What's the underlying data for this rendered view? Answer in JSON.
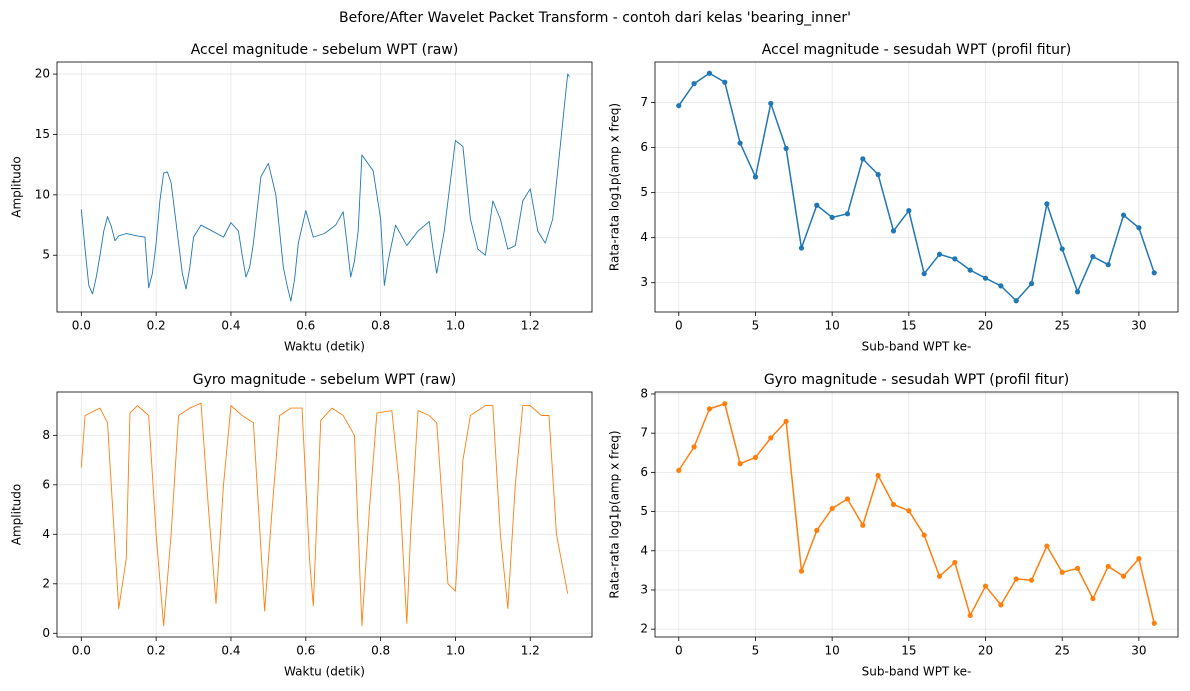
{
  "title": "Before/After Wavelet Packet Transform - contoh dari kelas 'bearing_inner'",
  "chart_data": [
    {
      "type": "line",
      "title": "Accel magnitude - sebelum WPT (raw)",
      "x_label": "Waktu (detik)",
      "y_label": "Amplitudo",
      "grid": true,
      "marker": false,
      "x": [
        0.0,
        0.01,
        0.02,
        0.03,
        0.04,
        0.05,
        0.06,
        0.07,
        0.08,
        0.09,
        0.1,
        0.12,
        0.15,
        0.17,
        0.18,
        0.19,
        0.2,
        0.21,
        0.22,
        0.23,
        0.24,
        0.25,
        0.26,
        0.27,
        0.28,
        0.29,
        0.3,
        0.32,
        0.35,
        0.38,
        0.4,
        0.42,
        0.43,
        0.44,
        0.45,
        0.46,
        0.48,
        0.5,
        0.52,
        0.53,
        0.54,
        0.55,
        0.56,
        0.57,
        0.58,
        0.6,
        0.62,
        0.65,
        0.68,
        0.7,
        0.71,
        0.72,
        0.73,
        0.74,
        0.75,
        0.78,
        0.79,
        0.8,
        0.81,
        0.82,
        0.84,
        0.87,
        0.9,
        0.93,
        0.94,
        0.95,
        0.97,
        1.0,
        1.02,
        1.04,
        1.06,
        1.08,
        1.1,
        1.12,
        1.14,
        1.16,
        1.18,
        1.2,
        1.22,
        1.24,
        1.26,
        1.28,
        1.3,
        1.305
      ],
      "xlim": [
        -0.065,
        1.365
      ],
      "xticks": [
        {
          "value": 0,
          "label": "0.0"
        },
        0.2,
        0.4,
        0.6,
        0.8,
        {
          "value": 1,
          "label": "1.0"
        },
        1.2
      ],
      "ylim": [
        0.3,
        21
      ],
      "yticks": [
        5,
        10,
        15,
        20
      ],
      "series": [
        {
          "color": "#1f77b4",
          "values": [
            8.8,
            5.5,
            2.5,
            1.8,
            3.2,
            5.0,
            7.0,
            8.2,
            7.4,
            6.2,
            6.6,
            6.8,
            6.6,
            6.5,
            2.3,
            3.5,
            6.0,
            9.5,
            11.8,
            11.9,
            11.0,
            8.5,
            6.0,
            3.5,
            2.2,
            4.0,
            6.5,
            7.5,
            7.0,
            6.5,
            7.7,
            7.0,
            5.0,
            3.2,
            4.0,
            6.0,
            11.5,
            12.6,
            10.0,
            7.0,
            4.0,
            2.5,
            1.2,
            3.0,
            6.0,
            8.7,
            6.5,
            6.8,
            7.5,
            8.6,
            6.0,
            3.2,
            4.5,
            7.0,
            13.3,
            12.0,
            10.0,
            8.0,
            2.5,
            4.5,
            7.5,
            5.8,
            7.0,
            7.8,
            5.5,
            3.5,
            7.0,
            14.5,
            14.0,
            8.0,
            5.5,
            5.0,
            9.5,
            8.0,
            5.5,
            5.8,
            9.5,
            10.5,
            7.0,
            6.0,
            8.0,
            14.0,
            20.0,
            19.8
          ]
        }
      ]
    },
    {
      "type": "line",
      "title": "Accel magnitude - sesudah WPT (profil fitur)",
      "x_label": "Sub-band WPT ke-",
      "y_label": "Rata-rata log1p(amp x freq)",
      "grid": true,
      "marker": true,
      "x": [
        0,
        1,
        2,
        3,
        4,
        5,
        6,
        7,
        8,
        9,
        10,
        11,
        12,
        13,
        14,
        15,
        16,
        17,
        18,
        19,
        20,
        21,
        22,
        23,
        24,
        25,
        26,
        27,
        28,
        29,
        30,
        31
      ],
      "xlim": [
        -1.55,
        32.55
      ],
      "xticks": [
        0,
        5,
        10,
        15,
        20,
        25,
        30
      ],
      "ylim": [
        2.35,
        7.9
      ],
      "yticks": [
        3,
        4,
        5,
        6,
        7
      ],
      "series": [
        {
          "color": "#1f77b4",
          "values": [
            6.93,
            7.42,
            7.65,
            7.45,
            6.1,
            5.35,
            6.98,
            5.98,
            3.77,
            4.72,
            4.45,
            4.53,
            5.75,
            5.4,
            4.15,
            4.6,
            3.2,
            3.63,
            3.53,
            3.28,
            3.1,
            2.93,
            2.6,
            2.98,
            4.75,
            3.75,
            2.8,
            3.58,
            3.4,
            4.5,
            4.22,
            3.22
          ]
        }
      ]
    },
    {
      "type": "line",
      "title": "Gyro magnitude - sebelum WPT (raw)",
      "x_label": "Waktu (detik)",
      "y_label": "Amplitudo",
      "grid": true,
      "marker": false,
      "x": [
        0.0,
        0.01,
        0.05,
        0.07,
        0.1,
        0.12,
        0.13,
        0.15,
        0.18,
        0.2,
        0.22,
        0.24,
        0.26,
        0.29,
        0.32,
        0.34,
        0.36,
        0.38,
        0.4,
        0.43,
        0.46,
        0.49,
        0.51,
        0.53,
        0.56,
        0.59,
        0.61,
        0.62,
        0.64,
        0.67,
        0.7,
        0.73,
        0.75,
        0.77,
        0.79,
        0.83,
        0.85,
        0.87,
        0.88,
        0.9,
        0.93,
        0.95,
        0.98,
        1.0,
        1.02,
        1.04,
        1.08,
        1.1,
        1.12,
        1.14,
        1.16,
        1.18,
        1.2,
        1.23,
        1.25,
        1.27,
        1.3
      ],
      "xlim": [
        -0.065,
        1.365
      ],
      "xticks": [
        {
          "value": 0,
          "label": "0.0"
        },
        0.2,
        0.4,
        0.6,
        0.8,
        {
          "value": 1,
          "label": "1.0"
        },
        1.2
      ],
      "ylim": [
        -0.15,
        9.75
      ],
      "yticks": [
        0,
        2,
        4,
        6,
        8
      ],
      "series": [
        {
          "color": "#ff7f0e",
          "values": [
            6.7,
            8.8,
            9.1,
            8.5,
            1.0,
            3.0,
            8.9,
            9.2,
            8.8,
            4.0,
            0.3,
            4.0,
            8.8,
            9.1,
            9.3,
            5.0,
            1.2,
            6.0,
            9.2,
            8.8,
            8.5,
            0.9,
            5.0,
            8.8,
            9.1,
            9.1,
            3.0,
            1.1,
            8.6,
            9.1,
            8.8,
            8.0,
            0.3,
            5.0,
            8.9,
            9.0,
            6.0,
            0.4,
            4.0,
            9.0,
            8.8,
            8.5,
            2.0,
            1.7,
            7.0,
            8.8,
            9.2,
            9.2,
            4.0,
            1.0,
            6.0,
            9.2,
            9.2,
            8.8,
            8.8,
            4.0,
            1.6
          ]
        }
      ]
    },
    {
      "type": "line",
      "title": "Gyro magnitude - sesudah WPT (profil fitur)",
      "x_label": "Sub-band WPT ke-",
      "y_label": "Rata-rata log1p(amp x freq)",
      "grid": true,
      "marker": true,
      "x": [
        0,
        1,
        2,
        3,
        4,
        5,
        6,
        7,
        8,
        9,
        10,
        11,
        12,
        13,
        14,
        15,
        16,
        17,
        18,
        19,
        20,
        21,
        22,
        23,
        24,
        25,
        26,
        27,
        28,
        29,
        30,
        31
      ],
      "xlim": [
        -1.55,
        32.55
      ],
      "xticks": [
        0,
        5,
        10,
        15,
        20,
        25,
        30
      ],
      "ylim": [
        1.8,
        8.05
      ],
      "yticks": [
        2,
        3,
        4,
        5,
        6,
        7,
        8
      ],
      "series": [
        {
          "color": "#ff7f0e",
          "values": [
            6.05,
            6.65,
            7.62,
            7.75,
            6.22,
            6.38,
            6.88,
            7.3,
            3.48,
            4.52,
            5.08,
            5.32,
            4.65,
            5.92,
            5.18,
            5.02,
            4.4,
            3.35,
            3.7,
            2.35,
            3.1,
            2.62,
            3.28,
            3.25,
            4.12,
            3.45,
            3.55,
            2.78,
            3.6,
            3.35,
            3.8,
            2.15
          ]
        }
      ]
    }
  ]
}
